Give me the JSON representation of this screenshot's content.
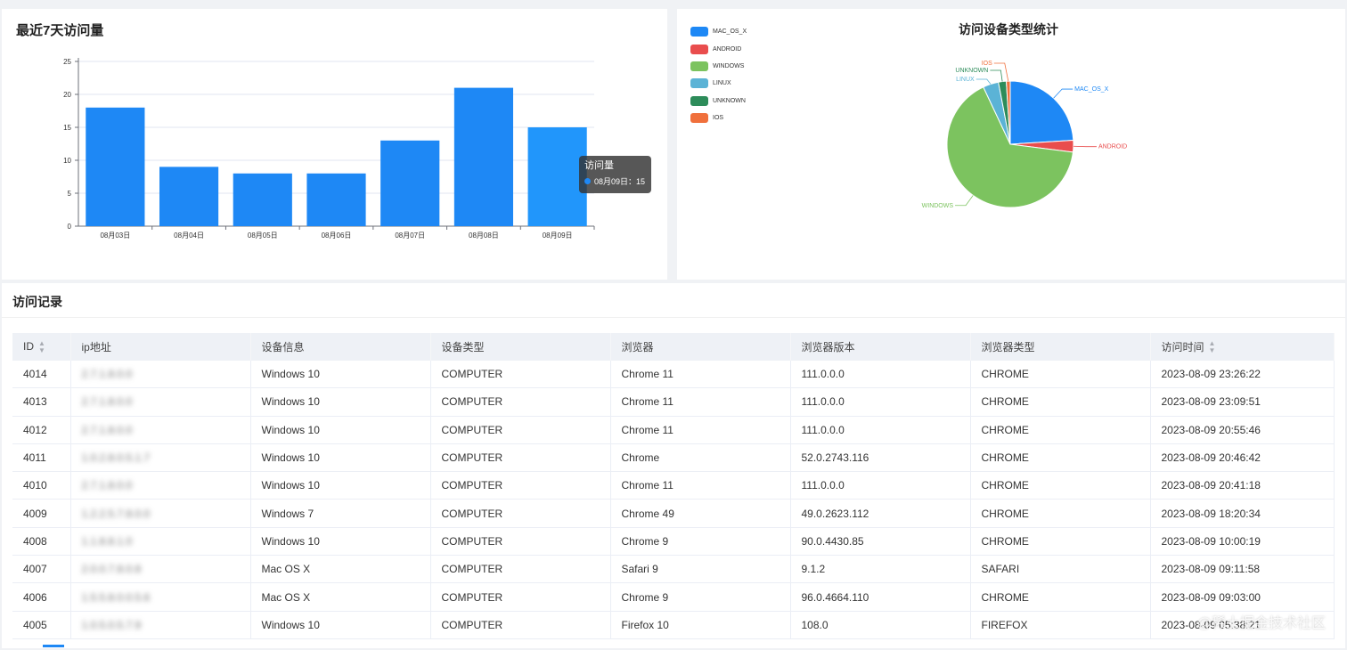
{
  "bar_panel": {
    "title": "最近7天访问量",
    "tooltip": {
      "title": "访问量",
      "label": "08月09日",
      "value": "15"
    }
  },
  "pie_panel": {
    "title": "访问设备类型统计"
  },
  "chart_data": [
    {
      "type": "bar",
      "title": "最近7天访问量",
      "categories": [
        "08月03日",
        "08月04日",
        "08月05日",
        "08月06日",
        "08月07日",
        "08月08日",
        "08月09日"
      ],
      "values": [
        18,
        9,
        8,
        8,
        13,
        21,
        15
      ],
      "ylim": [
        0,
        25
      ],
      "yticks": [
        0,
        5,
        10,
        15,
        20,
        25
      ],
      "grid": true,
      "color": "#1e88f5",
      "highlight_color": "#2196fb"
    },
    {
      "type": "pie",
      "title": "访问设备类型统计",
      "legend_position": "top-left",
      "labels": [
        "MAC_OS_X",
        "ANDROID",
        "WINDOWS",
        "LINUX",
        "UNKNOWN",
        "IOS"
      ],
      "values": [
        24,
        3,
        66,
        4,
        2,
        1
      ],
      "colors": [
        "#1e88f5",
        "#e94d4d",
        "#7cc35f",
        "#5bb3d6",
        "#2d8c5a",
        "#f0703c"
      ]
    }
  ],
  "records": {
    "title": "访问记录",
    "columns": [
      "ID",
      "ip地址",
      "设备信息",
      "设备类型",
      "浏览器",
      "浏览器版本",
      "浏览器类型",
      "访问时间"
    ],
    "rows": [
      [
        "4014",
        "2.7.1.8.0.0",
        "Windows 10",
        "COMPUTER",
        "Chrome 11",
        "111.0.0.0",
        "CHROME",
        "2023-08-09 23:26:22"
      ],
      [
        "4013",
        "2.7.1.8.0.0",
        "Windows 10",
        "COMPUTER",
        "Chrome 11",
        "111.0.0.0",
        "CHROME",
        "2023-08-09 23:09:51"
      ],
      [
        "4012",
        "2.7.1.8.0.0",
        "Windows 10",
        "COMPUTER",
        "Chrome 11",
        "111.0.0.0",
        "CHROME",
        "2023-08-09 20:55:46"
      ],
      [
        "4011",
        "1.0.2.8.0.5.1.7",
        "Windows 10",
        "COMPUTER",
        "Chrome",
        "52.0.2743.116",
        "CHROME",
        "2023-08-09 20:46:42"
      ],
      [
        "4010",
        "2.7.1.8.0.0",
        "Windows 10",
        "COMPUTER",
        "Chrome 11",
        "111.0.0.0",
        "CHROME",
        "2023-08-09 20:41:18"
      ],
      [
        "4009",
        "1.2.2.5.7.8.0.0",
        "Windows 7",
        "COMPUTER",
        "Chrome 49",
        "49.0.2623.112",
        "CHROME",
        "2023-08-09 18:20:34"
      ],
      [
        "4008",
        "1.1.8.8.1.0",
        "Windows 10",
        "COMPUTER",
        "Chrome 9",
        "90.0.4430.85",
        "CHROME",
        "2023-08-09 10:00:19"
      ],
      [
        "4007",
        "2.0.0.7.8.0.8",
        "Mac OS X",
        "COMPUTER",
        "Safari 9",
        "9.1.2",
        "SAFARI",
        "2023-08-09 09:11:58"
      ],
      [
        "4006",
        "1.5.5.8.0.0.5.6",
        "Mac OS X",
        "COMPUTER",
        "Chrome 9",
        "96.0.4664.110",
        "CHROME",
        "2023-08-09 09:03:00"
      ],
      [
        "4005",
        "1.0.5.0.5.7.9",
        "Windows 10",
        "COMPUTER",
        "Firefox 10",
        "108.0",
        "FIREFOX",
        "2023-08-09 05:38:21"
      ]
    ]
  },
  "watermark": "@稀土掘金技术社区"
}
